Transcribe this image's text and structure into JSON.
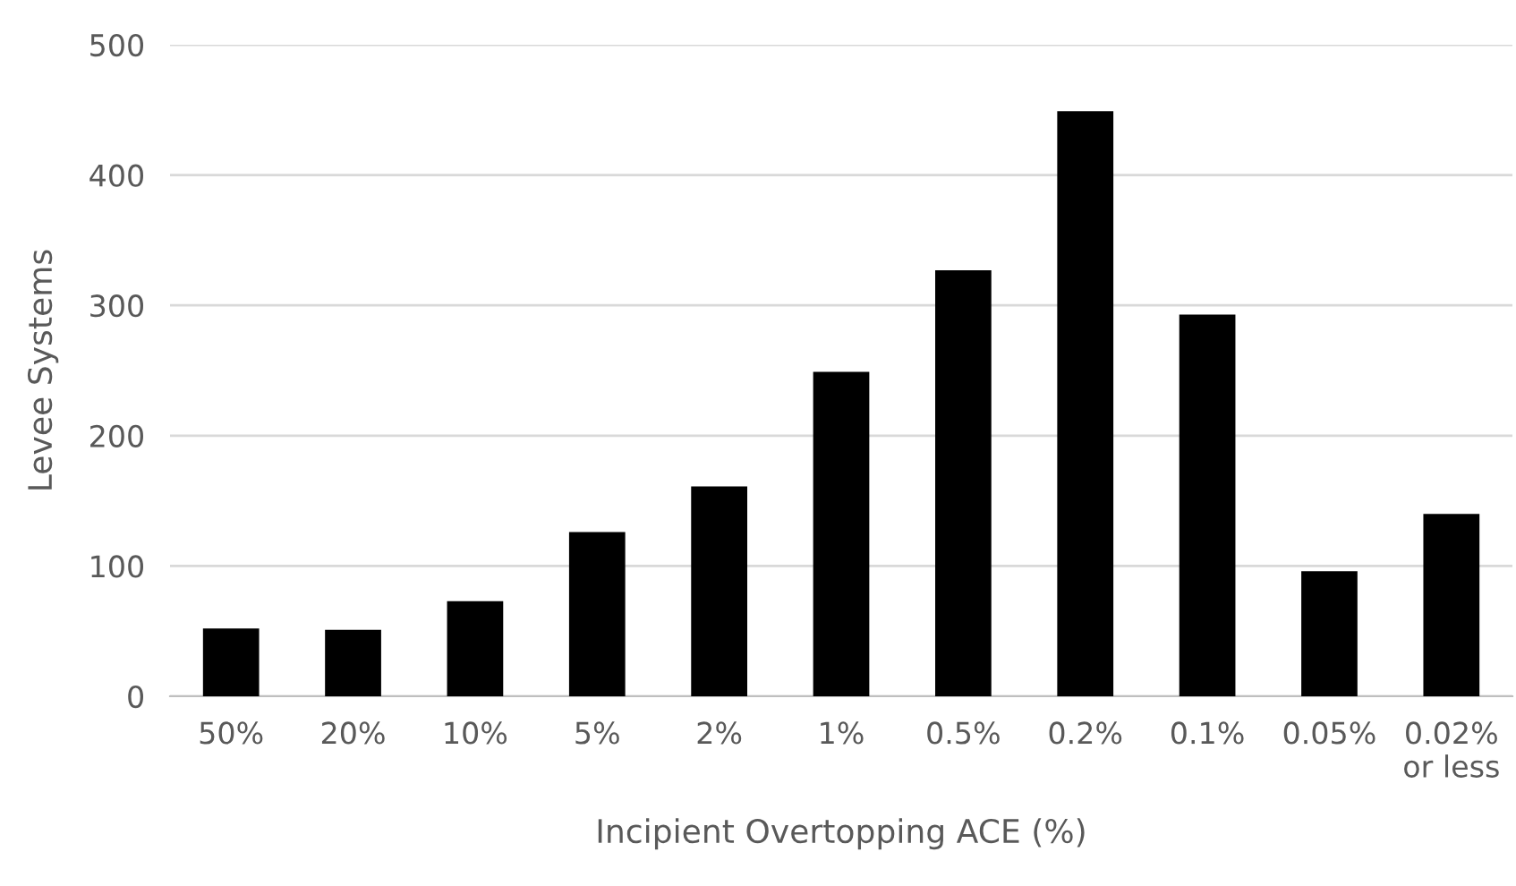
{
  "chart_data": {
    "type": "bar",
    "xlabel": "Incipient Overtopping ACE (%)",
    "ylabel": "Levee Systems",
    "categories": [
      "50%",
      "20%",
      "10%",
      "5%",
      "2%",
      "1%",
      "0.5%",
      "0.2%",
      "0.1%",
      "0.05%",
      "0.02%\nor less"
    ],
    "values": [
      52,
      51,
      73,
      126,
      161,
      249,
      327,
      449,
      293,
      96,
      140
    ],
    "color": "#000000",
    "ylim": [
      0,
      500
    ],
    "yticks": [
      0,
      100,
      200,
      300,
      400,
      500
    ],
    "grid": "y",
    "legend": false
  }
}
